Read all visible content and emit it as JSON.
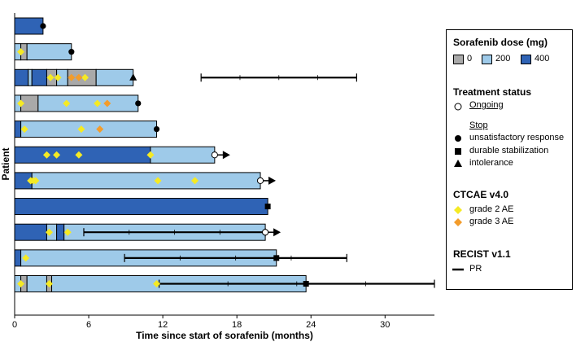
{
  "chart_data": {
    "type": "swimmer",
    "xlabel": "Time since start of sorafenib (months)",
    "ylabel": "Patient",
    "xlim": [
      0,
      34
    ],
    "xticks": [
      0,
      6,
      12,
      18,
      24,
      30
    ],
    "colors": {
      "dose_0": "#a9a9a9",
      "dose_200": "#9ecae9",
      "dose_400": "#2f63b5",
      "grade2": "#f5ea24",
      "grade3": "#f39c2b",
      "line": "#000000"
    },
    "patients": [
      {
        "segments": [
          [
            0,
            2.3,
            400
          ]
        ],
        "end_marker": "unsatisfactory",
        "ae2": [],
        "ae3": [],
        "pr": []
      },
      {
        "segments": [
          [
            0,
            0.5,
            200
          ],
          [
            0.5,
            1.0,
            0
          ],
          [
            1.0,
            4.6,
            200
          ]
        ],
        "end_marker": "unsatisfactory",
        "ae2": [
          0.5
        ],
        "ae3": [],
        "pr": []
      },
      {
        "segments": [
          [
            0,
            1.1,
            400
          ],
          [
            1.1,
            1.4,
            200
          ],
          [
            1.4,
            2.6,
            400
          ],
          [
            2.6,
            3.4,
            0
          ],
          [
            3.4,
            4.3,
            200
          ],
          [
            4.3,
            6.6,
            0
          ],
          [
            6.6,
            9.6,
            200
          ]
        ],
        "end_marker": "intolerance",
        "ae2": [
          2.9,
          3.5,
          5.7
        ],
        "ae3": [
          4.6,
          5.2
        ],
        "pr": [
          [
            15.1,
            27.7
          ]
        ]
      },
      {
        "segments": [
          [
            0,
            0.5,
            200
          ],
          [
            0.5,
            1.9,
            0
          ],
          [
            1.9,
            10.0,
            200
          ]
        ],
        "end_marker": "unsatisfactory",
        "ae2": [
          0.5,
          4.2,
          6.7
        ],
        "ae3": [
          7.5
        ],
        "pr": []
      },
      {
        "segments": [
          [
            0,
            0.5,
            400
          ],
          [
            0.5,
            11.5,
            200
          ]
        ],
        "end_marker": "unsatisfactory",
        "ae2": [
          0.8,
          5.4
        ],
        "ae3": [
          6.9
        ],
        "pr": []
      },
      {
        "segments": [
          [
            0,
            11.0,
            400
          ],
          [
            11.0,
            16.2,
            200
          ]
        ],
        "end_marker": "ongoing",
        "ae2": [
          2.6,
          3.4,
          5.2,
          11.0
        ],
        "ae3": [],
        "pr": []
      },
      {
        "segments": [
          [
            0,
            1.4,
            400
          ],
          [
            1.4,
            19.9,
            200
          ]
        ],
        "end_marker": "ongoing",
        "ae2": [
          1.3,
          1.5,
          1.7,
          11.6,
          14.6
        ],
        "ae3": [],
        "pr": []
      },
      {
        "segments": [
          [
            0,
            20.5,
            400
          ]
        ],
        "end_marker": "durable_stabilization",
        "ae2": [],
        "ae3": [],
        "pr": []
      },
      {
        "segments": [
          [
            0,
            2.6,
            400
          ],
          [
            2.6,
            3.4,
            200
          ],
          [
            3.4,
            4.0,
            400
          ],
          [
            4.0,
            20.3,
            200
          ]
        ],
        "end_marker": "ongoing",
        "ae2": [
          2.8,
          4.3
        ],
        "ae3": [],
        "pr": [
          [
            5.6,
            20.3
          ]
        ]
      },
      {
        "segments": [
          [
            0,
            0.5,
            400
          ],
          [
            0.5,
            21.2,
            200
          ]
        ],
        "end_marker": "durable_stabilization",
        "ae2": [
          0.9
        ],
        "ae3": [],
        "pr": [
          [
            8.9,
            26.9
          ]
        ]
      },
      {
        "segments": [
          [
            0,
            0.5,
            200
          ],
          [
            0.5,
            1.0,
            0
          ],
          [
            1.0,
            2.6,
            200
          ],
          [
            2.6,
            3.0,
            0
          ],
          [
            3.0,
            23.6,
            200
          ]
        ],
        "end_marker": "durable_stabilization",
        "ae2": [
          0.5,
          2.8,
          11.5
        ],
        "ae3": [],
        "pr": [
          [
            11.7,
            34.0
          ]
        ]
      }
    ],
    "continuing_arrows": [
      5,
      6,
      8
    ]
  },
  "legend": {
    "dose_title": "Sorafenib dose (mg)",
    "dose_labels": [
      "0",
      "200",
      "400"
    ],
    "status_title": "Treatment status",
    "ongoing": "Ongoing",
    "stop_title": "Stop",
    "stop_unsatisfactory": "unsatisfactory response",
    "stop_durable": "durable stabilization",
    "stop_intolerance": "intolerance",
    "ctcae_title": "CTCAE v4.0",
    "grade2": "grade 2 AE",
    "grade3": "grade 3 AE",
    "recist_title": "RECIST v1.1",
    "pr": "PR"
  }
}
